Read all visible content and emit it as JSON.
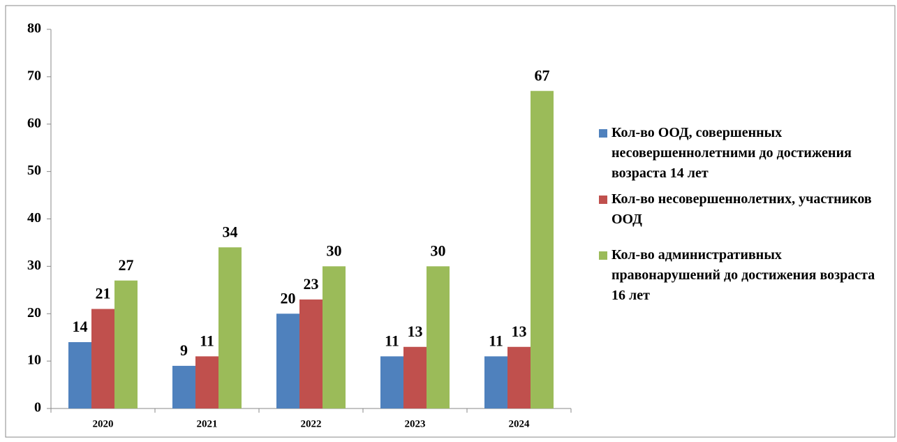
{
  "chart_data": {
    "type": "bar",
    "categories": [
      "2020",
      "2021",
      "2022",
      "2023",
      "2024"
    ],
    "series": [
      {
        "name": "Кол-во ООД, совершенных несовершеннолетними до достижения возраста 14 лет",
        "color": "#4f81bd",
        "values": [
          14,
          9,
          20,
          11,
          11
        ]
      },
      {
        "name": "Кол-во несовершеннолетних, участников ООД",
        "color": "#c0504d",
        "values": [
          21,
          11,
          23,
          13,
          13
        ]
      },
      {
        "name": "Кол-во административных правонарушений до достижения возраста 16 лет",
        "color": "#9bbb59",
        "values": [
          27,
          34,
          30,
          30,
          67
        ]
      }
    ],
    "ylim": [
      0,
      80
    ],
    "yticks": [
      0,
      10,
      20,
      30,
      40,
      50,
      60,
      70,
      80
    ],
    "grid": false,
    "legend": "right"
  }
}
